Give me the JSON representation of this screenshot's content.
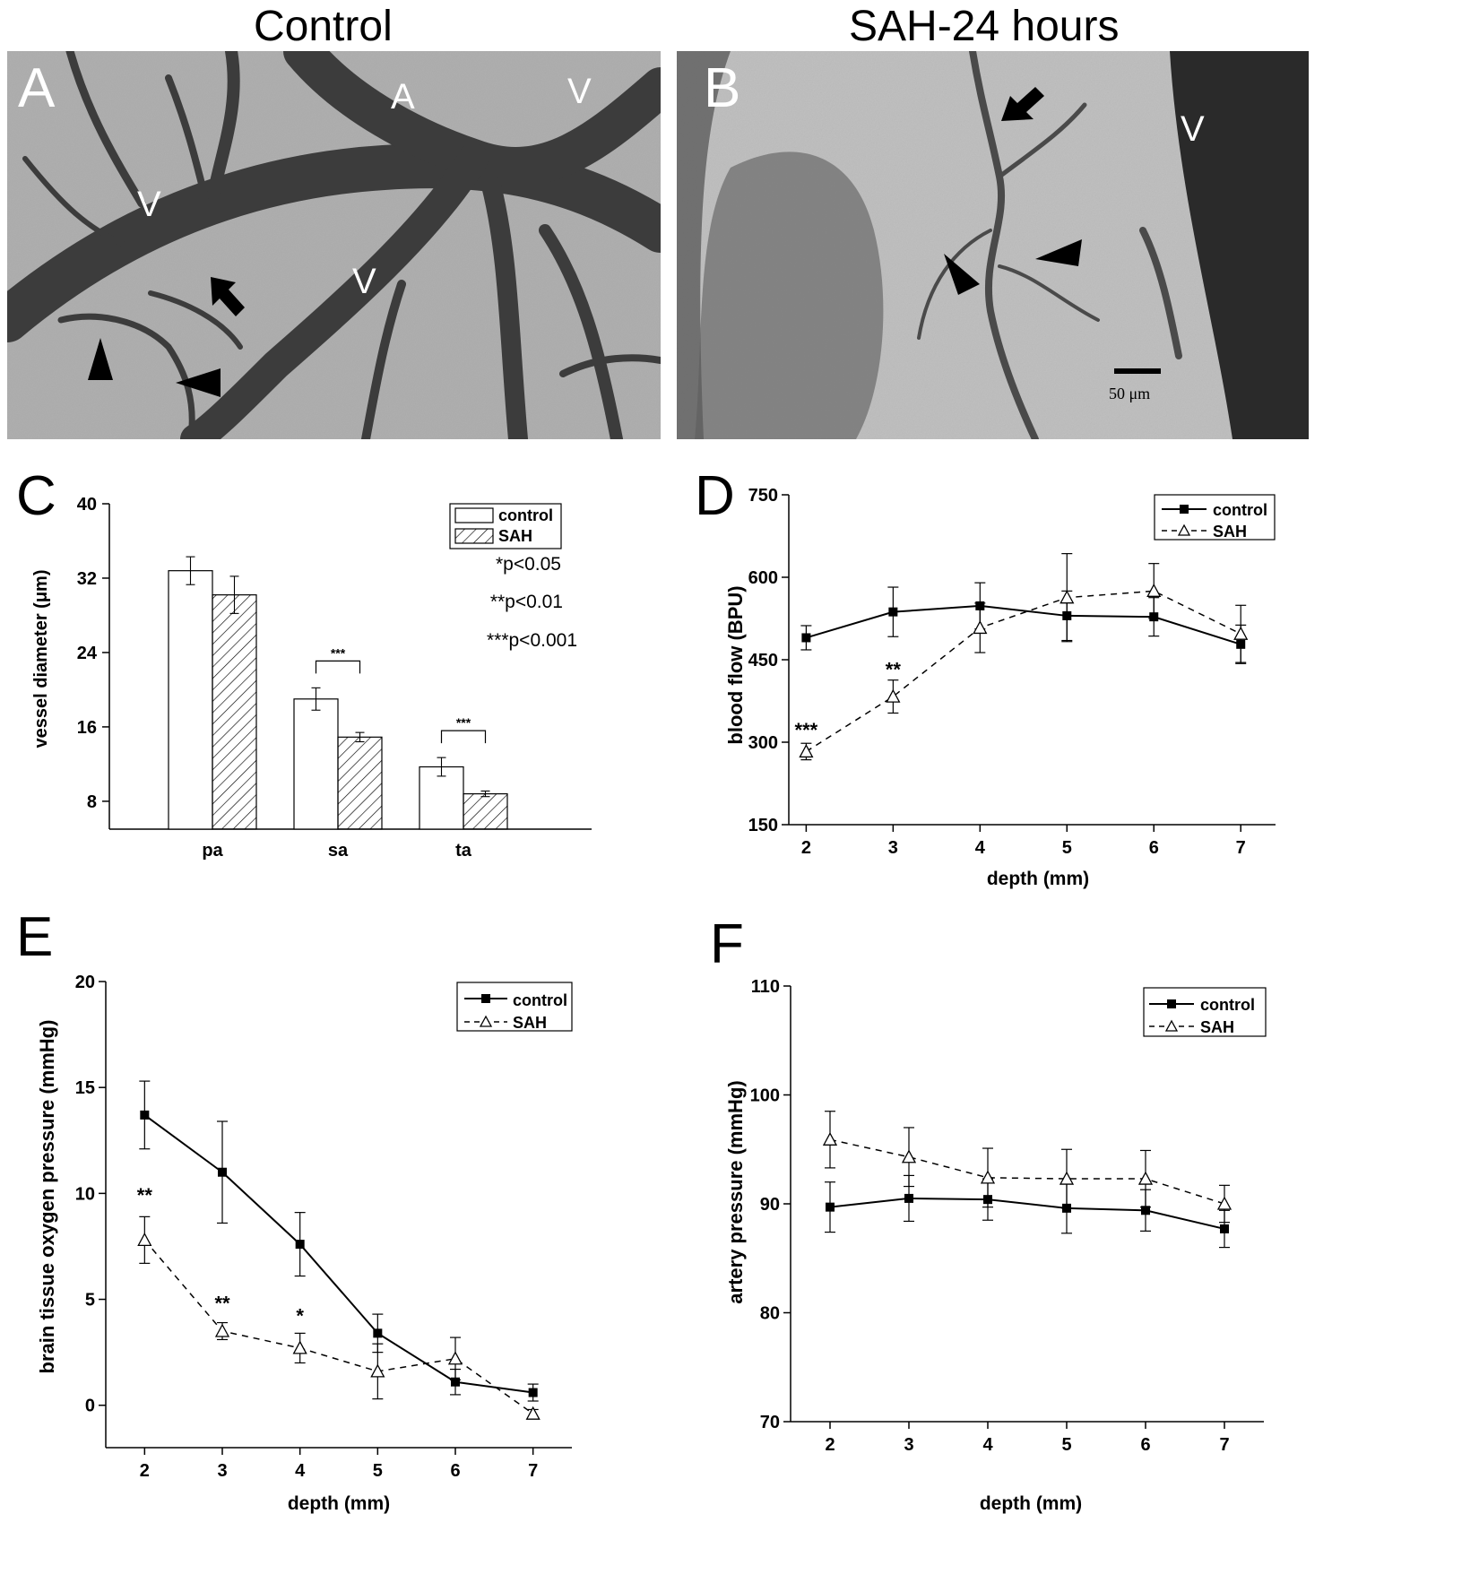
{
  "titles": {
    "left": "Control",
    "right": "SAH-24 hours"
  },
  "micrographs": {
    "A": {
      "letter": "A",
      "vessel_labels": [
        "A",
        "V",
        "V",
        "V"
      ]
    },
    "B": {
      "letter": "B",
      "vessel_labels": [
        "V"
      ],
      "scale_bar": "50 μm"
    }
  },
  "panel_letters": {
    "C": "C",
    "D": "D",
    "E": "E",
    "F": "F"
  },
  "chart_data": [
    {
      "panel": "C",
      "type": "bar",
      "categories": [
        "pa",
        "sa",
        "ta"
      ],
      "series": [
        {
          "name": "control",
          "values": [
            32.8,
            19.0,
            11.7
          ],
          "errors": [
            1.5,
            1.2,
            1.0
          ]
        },
        {
          "name": "SAH",
          "values": [
            30.2,
            14.9,
            8.8
          ],
          "errors": [
            2.0,
            0.5,
            0.3
          ]
        }
      ],
      "ylabel": "vessel diameter (μm)",
      "ylim": [
        5,
        40
      ],
      "yticks": [
        8,
        16,
        24,
        32,
        40
      ],
      "significance": [
        {
          "category": "sa",
          "label": "***"
        },
        {
          "category": "ta",
          "label": "***"
        }
      ],
      "notes": [
        "*p<0.05",
        "**p<0.01",
        "***p<0.001"
      ],
      "legend": "top-right"
    },
    {
      "panel": "D",
      "type": "line",
      "x": [
        2,
        3,
        4,
        5,
        6,
        7
      ],
      "series": [
        {
          "name": "control",
          "values": [
            490,
            537,
            548,
            530,
            528,
            478
          ],
          "errors": [
            22,
            45,
            42,
            45,
            35,
            35
          ]
        },
        {
          "name": "SAH",
          "values": [
            283,
            383,
            508,
            563,
            575,
            497
          ],
          "errors": [
            15,
            30,
            45,
            80,
            50,
            52
          ]
        }
      ],
      "xlabel": "depth (mm)",
      "ylabel": "blood flow (BPU)",
      "ylim": [
        150,
        750
      ],
      "yticks": [
        150,
        300,
        450,
        600,
        750
      ],
      "annotations": [
        {
          "x": 2,
          "y": 310,
          "text": "***"
        },
        {
          "x": 3,
          "y": 420,
          "text": "**"
        }
      ],
      "legend": "top-right"
    },
    {
      "panel": "E",
      "type": "line",
      "x": [
        2,
        3,
        4,
        5,
        6,
        7
      ],
      "series": [
        {
          "name": "control",
          "values": [
            13.7,
            11.0,
            7.6,
            3.4,
            1.1,
            0.6
          ],
          "errors": [
            1.6,
            2.4,
            1.5,
            0.9,
            0.6,
            0.4
          ]
        },
        {
          "name": "SAH",
          "values": [
            7.8,
            3.5,
            2.7,
            1.6,
            2.2,
            -0.4
          ],
          "errors": [
            1.1,
            0.4,
            0.7,
            1.3,
            1.0,
            0.2
          ]
        }
      ],
      "xlabel": "depth (mm)",
      "ylabel": "brain tissue oxygen pressure (mmHg)",
      "ylim": [
        -2,
        20
      ],
      "yticks": [
        0,
        5,
        10,
        15,
        20
      ],
      "annotations": [
        {
          "x": 2,
          "y": 9.6,
          "text": "**"
        },
        {
          "x": 3,
          "y": 4.5,
          "text": "**"
        },
        {
          "x": 4,
          "y": 3.9,
          "text": "*"
        }
      ],
      "legend": "top-right"
    },
    {
      "panel": "F",
      "type": "line",
      "x": [
        2,
        3,
        4,
        5,
        6,
        7
      ],
      "series": [
        {
          "name": "control",
          "values": [
            89.7,
            90.5,
            90.4,
            89.6,
            89.4,
            87.7
          ],
          "errors": [
            2.3,
            2.1,
            1.9,
            2.3,
            1.9,
            1.7
          ]
        },
        {
          "name": "SAH",
          "values": [
            95.9,
            94.3,
            92.4,
            92.3,
            92.3,
            90.0
          ],
          "errors": [
            2.6,
            2.7,
            2.7,
            2.7,
            2.6,
            1.7
          ]
        }
      ],
      "xlabel": "depth (mm)",
      "ylabel": "artery pressure (mmHg)",
      "ylim": [
        70,
        110
      ],
      "yticks": [
        70,
        80,
        90,
        100,
        110
      ],
      "legend": "top-right"
    }
  ]
}
